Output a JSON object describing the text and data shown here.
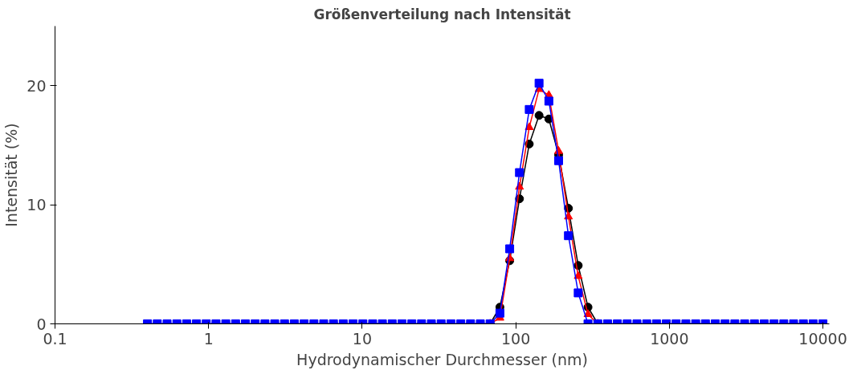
{
  "chart_data": {
    "type": "line",
    "title": "Größenverteilung nach Intensität",
    "xlabel": "Hydrodynamischer Durchmesser (nm)",
    "ylabel": "Intensität (%)",
    "log": "x",
    "xlim": [
      0.1,
      11000
    ],
    "ylim": [
      0,
      25
    ],
    "xticks": [
      0.1,
      1,
      10,
      100,
      1000,
      10000
    ],
    "yticks": [
      0,
      10,
      20
    ],
    "grid": false,
    "x": [
      0.4,
      0.4632,
      0.5365,
      0.6213,
      0.7195,
      0.8332,
      0.9649,
      1.117,
      1.294,
      1.499,
      1.736,
      2.01,
      2.328,
      2.696,
      3.122,
      3.615,
      4.187,
      4.849,
      5.615,
      6.503,
      7.531,
      8.721,
      10.1,
      11.7,
      13.54,
      15.69,
      18.17,
      21.04,
      24.36,
      28.21,
      32.67,
      37.84,
      43.82,
      50.75,
      58.77,
      68.06,
      78.82,
      91.28,
      105.7,
      122.4,
      141.8,
      164.2,
      190.1,
      220.2,
      255.0,
      295.3,
      342.0,
      396.1,
      458.7,
      531.2,
      615.1,
      712.4,
      825.0,
      955.4,
      1106,
      1281,
      1484,
      1718,
      1990,
      2305,
      2669,
      3091,
      3580,
      4145,
      4801,
      5560,
      6439,
      7456,
      8635,
      10000
    ],
    "series": [
      {
        "color": "#000000",
        "marker": "circle",
        "values": [
          0,
          0,
          0,
          0,
          0,
          0,
          0,
          0,
          0,
          0,
          0,
          0,
          0,
          0,
          0,
          0,
          0,
          0,
          0,
          0,
          0,
          0,
          0,
          0,
          0,
          0,
          0,
          0,
          0,
          0,
          0,
          0,
          0,
          0,
          0,
          0,
          1.4,
          5.3,
          10.5,
          15.1,
          17.5,
          17.2,
          14.2,
          9.7,
          4.9,
          1.4,
          0,
          0,
          0,
          0,
          0,
          0,
          0,
          0,
          0,
          0,
          0,
          0,
          0,
          0,
          0,
          0,
          0,
          0,
          0,
          0,
          0,
          0,
          0,
          0
        ]
      },
      {
        "color": "#ff0000",
        "marker": "triangle",
        "values": [
          null,
          null,
          null,
          null,
          null,
          null,
          null,
          null,
          null,
          null,
          null,
          null,
          null,
          null,
          null,
          null,
          null,
          null,
          null,
          null,
          null,
          null,
          null,
          null,
          null,
          null,
          null,
          null,
          null,
          null,
          null,
          null,
          null,
          null,
          null,
          0,
          0.5,
          5.5,
          11.5,
          16.5,
          19.7,
          19.2,
          14.5,
          9.0,
          4.0,
          0.8,
          0,
          null,
          null,
          null,
          null,
          null,
          null,
          null,
          null,
          null,
          null,
          null,
          null,
          null,
          null,
          null,
          null,
          null,
          null,
          null,
          null,
          null,
          null,
          null
        ]
      },
      {
        "color": "#0000ff",
        "marker": "square",
        "values": [
          0,
          0,
          0,
          0,
          0,
          0,
          0,
          0,
          0,
          0,
          0,
          0,
          0,
          0,
          0,
          0,
          0,
          0,
          0,
          0,
          0,
          0,
          0,
          0,
          0,
          0,
          0,
          0,
          0,
          0,
          0,
          0,
          0,
          0,
          0,
          0,
          0.9,
          6.3,
          12.7,
          18.0,
          20.2,
          18.7,
          13.7,
          7.4,
          2.6,
          0,
          0,
          0,
          0,
          0,
          0,
          0,
          0,
          0,
          0,
          0,
          0,
          0,
          0,
          0,
          0,
          0,
          0,
          0,
          0,
          0,
          0,
          0,
          0,
          0
        ]
      }
    ]
  }
}
